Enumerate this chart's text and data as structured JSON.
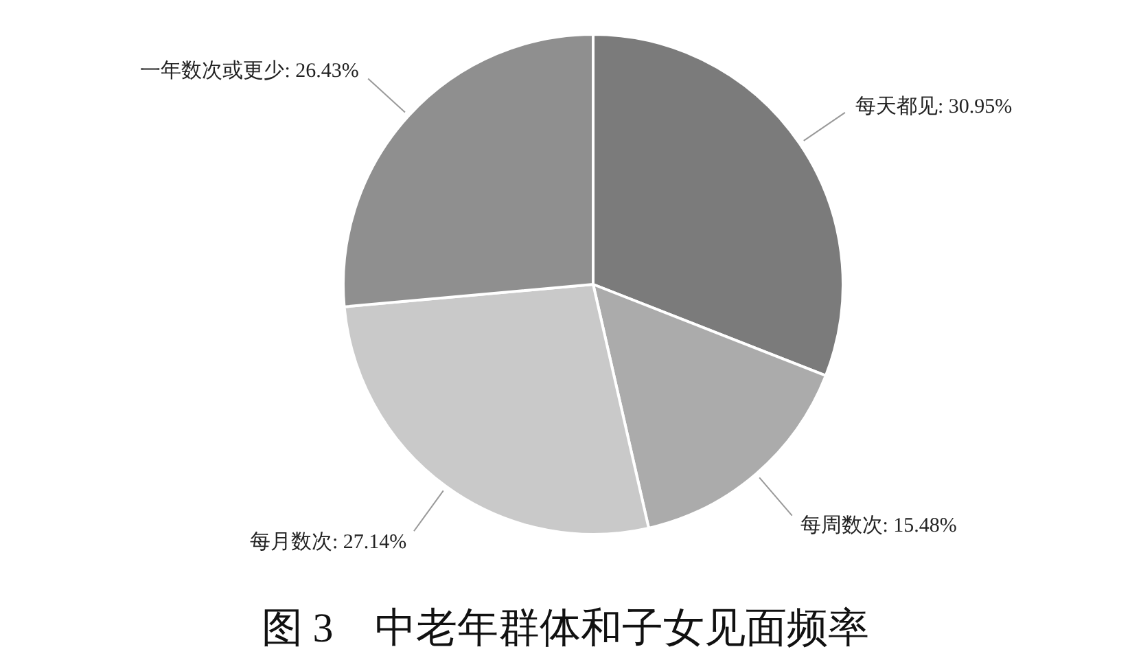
{
  "chart_data": {
    "type": "pie",
    "title": "图 3　中老年群体和子女见面频率",
    "categories": [
      "每天都见",
      "每周数次",
      "每月数次",
      "一年数次或更少"
    ],
    "values": [
      30.95,
      15.48,
      27.14,
      26.43
    ],
    "value_labels": [
      "30.95%",
      "15.48%",
      "27.14%",
      "26.43%"
    ],
    "colors": [
      "#7b7b7b",
      "#ababab",
      "#c9c9c9",
      "#8f8f8f"
    ]
  }
}
